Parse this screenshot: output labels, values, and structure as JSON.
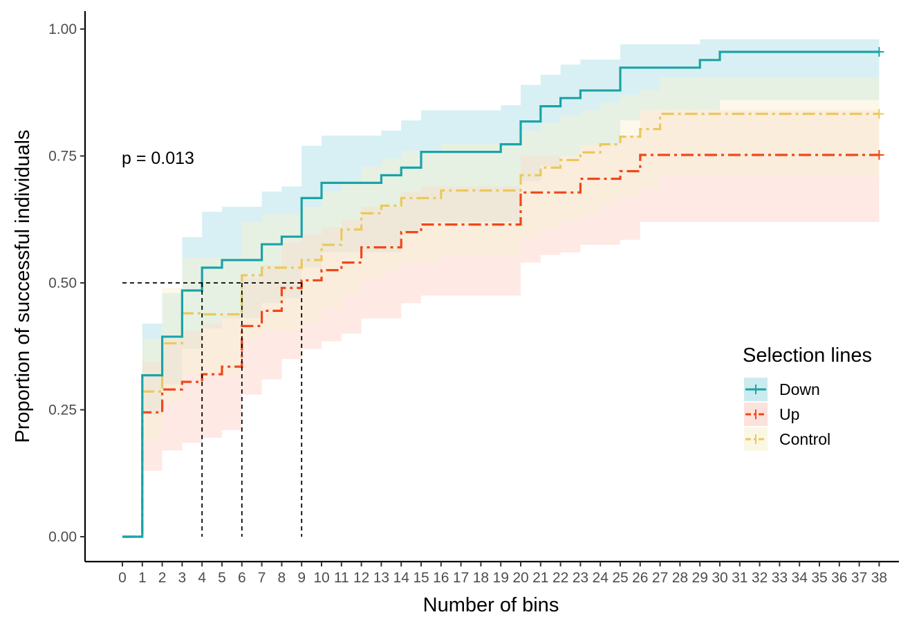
{
  "chart_data": {
    "type": "line",
    "subtype": "step (Kaplan-Meier cumulative)",
    "xlabel": "Number of bins",
    "ylabel": "Proportion of successful individuals",
    "x_ticks": [
      0,
      1,
      2,
      3,
      4,
      5,
      6,
      7,
      8,
      9,
      10,
      11,
      12,
      13,
      14,
      15,
      16,
      17,
      18,
      19,
      20,
      21,
      22,
      23,
      24,
      25,
      26,
      27,
      28,
      29,
      30,
      31,
      32,
      33,
      34,
      35,
      36,
      37,
      38
    ],
    "y_ticks": [
      "0.00",
      "0.25",
      "0.50",
      "0.75",
      "1.00"
    ],
    "y_tick_values": [
      0,
      0.25,
      0.5,
      0.75,
      1.0
    ],
    "ylim": [
      0,
      1
    ],
    "xlim": [
      0,
      38
    ],
    "annotation": "p = 0.013",
    "legend_title": "Selection lines",
    "legend_position": "right",
    "grid": false,
    "median_lines": {
      "y": 0.5,
      "x": [
        4,
        6,
        9
      ]
    },
    "series": [
      {
        "name": "Down",
        "color": "#1BA3A7",
        "band_color": "#A8DDE5",
        "dash": "solid",
        "censor_x": 38,
        "steps": [
          [
            0,
            0
          ],
          [
            1,
            0.318
          ],
          [
            2,
            0.394
          ],
          [
            3,
            0.485
          ],
          [
            4,
            0.53
          ],
          [
            5,
            0.545
          ],
          [
            7,
            0.576
          ],
          [
            8,
            0.591
          ],
          [
            9,
            0.667
          ],
          [
            10,
            0.697
          ],
          [
            13,
            0.712
          ],
          [
            14,
            0.727
          ],
          [
            15,
            0.758
          ],
          [
            19,
            0.773
          ],
          [
            20,
            0.818
          ],
          [
            21,
            0.848
          ],
          [
            22,
            0.864
          ],
          [
            23,
            0.879
          ],
          [
            25,
            0.924
          ],
          [
            29,
            0.939
          ],
          [
            30,
            0.955
          ]
        ],
        "lower": [
          [
            0,
            0
          ],
          [
            1,
            0.24
          ],
          [
            2,
            0.3
          ],
          [
            3,
            0.37
          ],
          [
            4,
            0.41
          ],
          [
            5,
            0.43
          ],
          [
            6,
            0.43
          ],
          [
            7,
            0.46
          ],
          [
            8,
            0.47
          ],
          [
            9,
            0.53
          ],
          [
            10,
            0.56
          ],
          [
            14,
            0.6
          ],
          [
            15,
            0.62
          ],
          [
            20,
            0.7
          ],
          [
            21,
            0.73
          ],
          [
            22,
            0.75
          ],
          [
            23,
            0.77
          ],
          [
            25,
            0.82
          ],
          [
            26,
            0.84
          ],
          [
            30,
            0.86
          ]
        ],
        "upper": [
          [
            0,
            0
          ],
          [
            1,
            0.42
          ],
          [
            2,
            0.48
          ],
          [
            3,
            0.59
          ],
          [
            4,
            0.64
          ],
          [
            5,
            0.65
          ],
          [
            7,
            0.68
          ],
          [
            8,
            0.69
          ],
          [
            9,
            0.77
          ],
          [
            10,
            0.79
          ],
          [
            13,
            0.8
          ],
          [
            14,
            0.82
          ],
          [
            15,
            0.84
          ],
          [
            19,
            0.85
          ],
          [
            20,
            0.89
          ],
          [
            21,
            0.91
          ],
          [
            22,
            0.93
          ],
          [
            23,
            0.94
          ],
          [
            25,
            0.97
          ],
          [
            29,
            0.98
          ],
          [
            30,
            0.98
          ]
        ]
      },
      {
        "name": "Up",
        "color": "#F0471A",
        "band_color": "#FCCFC3",
        "dash": "dashdot",
        "censor_x": 38,
        "steps": [
          [
            0,
            0
          ],
          [
            1,
            0.245
          ],
          [
            2,
            0.29
          ],
          [
            3,
            0.305
          ],
          [
            4,
            0.32
          ],
          [
            5,
            0.335
          ],
          [
            6,
            0.415
          ],
          [
            7,
            0.445
          ],
          [
            8,
            0.49
          ],
          [
            9,
            0.505
          ],
          [
            10,
            0.525
          ],
          [
            11,
            0.54
          ],
          [
            12,
            0.57
          ],
          [
            14,
            0.6
          ],
          [
            15,
            0.615
          ],
          [
            20,
            0.678
          ],
          [
            23,
            0.705
          ],
          [
            25,
            0.72
          ],
          [
            26,
            0.752
          ]
        ],
        "lower": [
          [
            0,
            0
          ],
          [
            1,
            0.13
          ],
          [
            2,
            0.17
          ],
          [
            3,
            0.185
          ],
          [
            4,
            0.195
          ],
          [
            5,
            0.21
          ],
          [
            6,
            0.28
          ],
          [
            7,
            0.31
          ],
          [
            8,
            0.35
          ],
          [
            9,
            0.37
          ],
          [
            10,
            0.385
          ],
          [
            11,
            0.4
          ],
          [
            12,
            0.43
          ],
          [
            14,
            0.46
          ],
          [
            15,
            0.475
          ],
          [
            20,
            0.54
          ],
          [
            21,
            0.555
          ],
          [
            22,
            0.56
          ],
          [
            23,
            0.575
          ],
          [
            25,
            0.585
          ],
          [
            26,
            0.62
          ]
        ],
        "upper": [
          [
            0,
            0
          ],
          [
            1,
            0.345
          ],
          [
            2,
            0.39
          ],
          [
            3,
            0.405
          ],
          [
            4,
            0.42
          ],
          [
            5,
            0.435
          ],
          [
            6,
            0.51
          ],
          [
            7,
            0.535
          ],
          [
            8,
            0.58
          ],
          [
            9,
            0.595
          ],
          [
            10,
            0.61
          ],
          [
            11,
            0.625
          ],
          [
            12,
            0.65
          ],
          [
            14,
            0.68
          ],
          [
            15,
            0.69
          ],
          [
            20,
            0.75
          ],
          [
            23,
            0.77
          ],
          [
            25,
            0.79
          ],
          [
            26,
            0.84
          ]
        ]
      },
      {
        "name": "Control",
        "color": "#EBC85C",
        "band_color": "#F9F1D3",
        "dash": "dashdot",
        "censor_x": 38,
        "steps": [
          [
            0,
            0
          ],
          [
            1,
            0.286
          ],
          [
            2,
            0.381
          ],
          [
            3,
            0.44
          ],
          [
            4,
            0.438
          ],
          [
            6,
            0.515
          ],
          [
            7,
            0.53
          ],
          [
            9,
            0.545
          ],
          [
            10,
            0.575
          ],
          [
            11,
            0.605
          ],
          [
            12,
            0.637
          ],
          [
            13,
            0.652
          ],
          [
            14,
            0.667
          ],
          [
            15,
            0.667
          ],
          [
            16,
            0.682
          ],
          [
            20,
            0.712
          ],
          [
            21,
            0.727
          ],
          [
            22,
            0.742
          ],
          [
            23,
            0.757
          ],
          [
            24,
            0.773
          ],
          [
            25,
            0.788
          ],
          [
            26,
            0.803
          ],
          [
            27,
            0.833
          ]
        ],
        "lower": [
          [
            0,
            0
          ],
          [
            1,
            0.19
          ],
          [
            2,
            0.265
          ],
          [
            3,
            0.32
          ],
          [
            4,
            0.32
          ],
          [
            6,
            0.39
          ],
          [
            7,
            0.405
          ],
          [
            9,
            0.42
          ],
          [
            10,
            0.45
          ],
          [
            11,
            0.48
          ],
          [
            12,
            0.51
          ],
          [
            13,
            0.525
          ],
          [
            14,
            0.54
          ],
          [
            16,
            0.555
          ],
          [
            20,
            0.59
          ],
          [
            21,
            0.605
          ],
          [
            22,
            0.62
          ],
          [
            23,
            0.635
          ],
          [
            24,
            0.655
          ],
          [
            25,
            0.67
          ],
          [
            26,
            0.685
          ],
          [
            27,
            0.71
          ]
        ],
        "upper": [
          [
            0,
            0
          ],
          [
            1,
            0.39
          ],
          [
            2,
            0.49
          ],
          [
            3,
            0.55
          ],
          [
            4,
            0.55
          ],
          [
            6,
            0.62
          ],
          [
            7,
            0.635
          ],
          [
            9,
            0.65
          ],
          [
            10,
            0.68
          ],
          [
            11,
            0.7
          ],
          [
            12,
            0.73
          ],
          [
            13,
            0.745
          ],
          [
            14,
            0.76
          ],
          [
            16,
            0.775
          ],
          [
            20,
            0.8
          ],
          [
            21,
            0.815
          ],
          [
            22,
            0.83
          ],
          [
            23,
            0.84
          ],
          [
            24,
            0.855
          ],
          [
            25,
            0.87
          ],
          [
            26,
            0.88
          ],
          [
            27,
            0.905
          ]
        ]
      }
    ]
  }
}
